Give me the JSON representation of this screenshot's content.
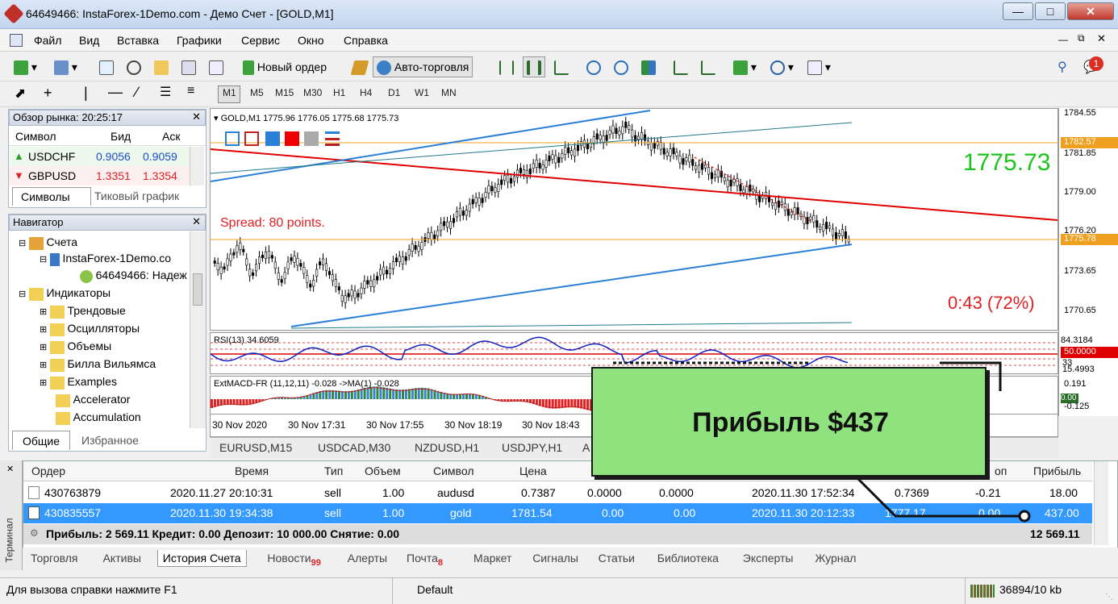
{
  "window": {
    "title": "64649466: InstaForex-1Demo.com - Демо Счет - [GOLD,M1]"
  },
  "menu": [
    "Файл",
    "Вид",
    "Вставка",
    "Графики",
    "Сервис",
    "Окно",
    "Справка"
  ],
  "toolbar": {
    "new_order": "Новый ордер",
    "auto_trading": "Авто-торговля",
    "notif_count": "1"
  },
  "timeframes": [
    "M1",
    "M5",
    "M15",
    "M30",
    "H1",
    "H4",
    "D1",
    "W1",
    "MN"
  ],
  "market_watch": {
    "title": "Обзор рынка: 20:25:17",
    "headers": [
      "Символ",
      "Бид",
      "Аск"
    ],
    "rows": [
      {
        "symbol": "USDCHF",
        "bid": "0.9056",
        "ask": "0.9059"
      },
      {
        "symbol": "GBPUSD",
        "bid": "1.3351",
        "ask": "1.3354"
      }
    ],
    "tabs": [
      "Символы",
      "Тиковый график"
    ]
  },
  "navigator": {
    "title": "Навигатор",
    "items": [
      "Счета",
      "InstaForex-1Demo.co",
      "64649466: Надеж",
      "Индикаторы",
      "Трендовые",
      "Осцилляторы",
      "Объемы",
      "Билла Вильямса",
      "Examples",
      "Accelerator",
      "Accumulation"
    ],
    "tabs": [
      "Общие",
      "Избранное"
    ]
  },
  "chart": {
    "header": "GOLD,M1  1775.96 1776.05 1775.68 1775.73",
    "bid_big": "1775.73",
    "spread": "Spread: 80 points.",
    "timer": "0:43 (72%)",
    "price_ticks": [
      "1784.55",
      "1782.57",
      "1781.85",
      "1779.00",
      "1776.20",
      "1775.78",
      "1773.65",
      "1770.65"
    ],
    "rsi_label": "RSI(13) 34.6059",
    "rsi_ticks": [
      "84.3184",
      "50.0000",
      "33",
      "15.4993"
    ],
    "macd_label": "ExtMACD-FR (11,12,11) -0.028  ->MA(1) -0.028",
    "macd_ticks": [
      "0.191",
      "0.00",
      "-0.125"
    ],
    "time_ticks": [
      "30 Nov 2020",
      "30 Nov 17:31",
      "30 Nov 17:55",
      "30 Nov 18:19",
      "30 Nov 18:43"
    ],
    "symbol_tabs": [
      "EURUSD,M15",
      "USDCAD,M30",
      "NZDUSD,H1",
      "USDJPY,H1",
      "A"
    ]
  },
  "colors": {
    "bid_green": "#1ec31e",
    "ask_red": "#e22",
    "chart_line_red": "#e00000",
    "channel_blue": "#2a7fd8",
    "callout": "#8fe27d",
    "selected_row": "#3399ff"
  },
  "terminal": {
    "side_label": "Терминал",
    "headers": [
      "Ордер",
      "Время",
      "Тип",
      "Объем",
      "Символ",
      "Цена",
      "",
      "",
      "",
      "",
      "оп",
      "Прибыль"
    ],
    "rows": [
      {
        "order": "430763879",
        "time": "2020.11.27 20:10:31",
        "type": "sell",
        "volume": "1.00",
        "symbol": "audusd",
        "price": "0.7387",
        "sl": "0.0000",
        "tp": "0.0000",
        "close_time": "2020.11.30 17:52:34",
        "close_price": "0.7369",
        "swap": "-0.21",
        "profit": "18.00"
      },
      {
        "order": "430835557",
        "time": "2020.11.30 19:34:38",
        "type": "sell",
        "volume": "1.00",
        "symbol": "gold",
        "price": "1781.54",
        "sl": "0.00",
        "tp": "0.00",
        "close_time": "2020.11.30 20:12:33",
        "close_price": "1777.17",
        "swap": "0.00",
        "profit": "437.00"
      }
    ],
    "summary": "Прибыль: 2 569.11  Кредит: 0.00  Депозит: 10 000.00  Снятие: 0.00",
    "summary_total": "12 569.11",
    "tabs": [
      {
        "label": "Торговля",
        "badge": ""
      },
      {
        "label": "Активы",
        "badge": ""
      },
      {
        "label": "История Счета",
        "badge": ""
      },
      {
        "label": "Новости",
        "badge": "99"
      },
      {
        "label": "Алерты",
        "badge": ""
      },
      {
        "label": "Почта",
        "badge": "8"
      },
      {
        "label": "Маркет",
        "badge": ""
      },
      {
        "label": "Сигналы",
        "badge": ""
      },
      {
        "label": "Статьи",
        "badge": ""
      },
      {
        "label": "Библиотека",
        "badge": ""
      },
      {
        "label": "Эксперты",
        "badge": ""
      },
      {
        "label": "Журнал",
        "badge": ""
      }
    ]
  },
  "callout": {
    "text": "Прибыль $437"
  },
  "status": {
    "help": "Для вызова справки нажмите F1",
    "profile": "Default",
    "traffic": "36894/10 kb"
  }
}
